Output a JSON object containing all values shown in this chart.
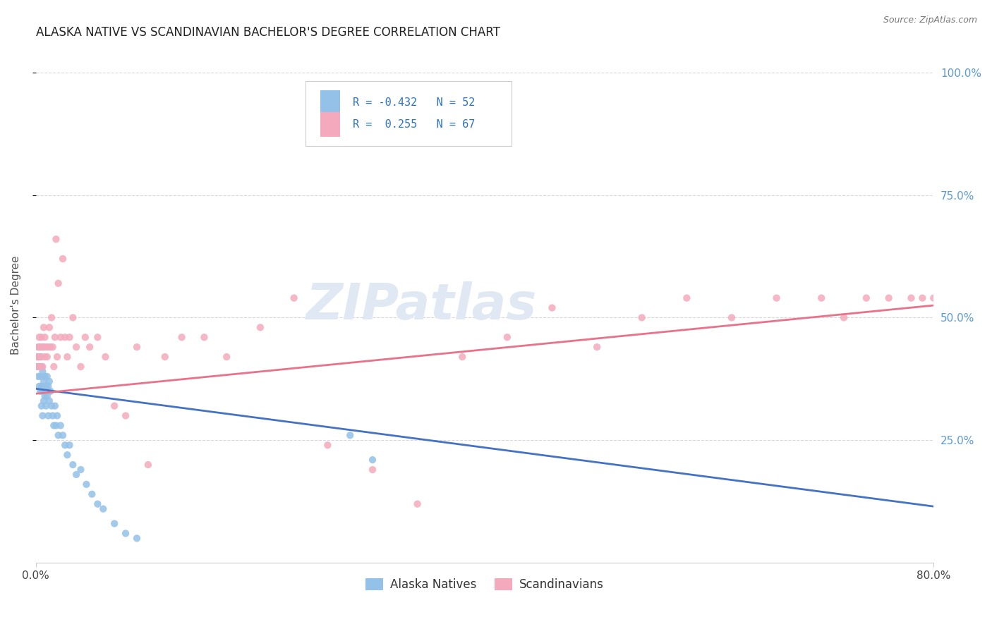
{
  "title": "ALASKA NATIVE VS SCANDINAVIAN BACHELOR'S DEGREE CORRELATION CHART",
  "source": "Source: ZipAtlas.com",
  "ylabel": "Bachelor's Degree",
  "right_yticks": [
    "100.0%",
    "75.0%",
    "50.0%",
    "25.0%"
  ],
  "right_ytick_vals": [
    1.0,
    0.75,
    0.5,
    0.25
  ],
  "legend_blue_label": "Alaska Natives",
  "legend_pink_label": "Scandinavians",
  "legend_line1": "R = -0.432   N = 52",
  "legend_line2": "R =  0.255   N = 67",
  "background_color": "#ffffff",
  "grid_color": "#d8d8d8",
  "blue_color": "#94C1E8",
  "pink_color": "#F4AABC",
  "blue_line_color": "#4472C4",
  "pink_line_color": "#E8728A",
  "watermark_color": "#E0E8F4",
  "watermark_text": "ZIPatlas",
  "alaska_x": [
    0.001,
    0.002,
    0.002,
    0.003,
    0.003,
    0.003,
    0.004,
    0.004,
    0.004,
    0.005,
    0.005,
    0.005,
    0.006,
    0.006,
    0.006,
    0.007,
    0.007,
    0.008,
    0.008,
    0.009,
    0.009,
    0.01,
    0.01,
    0.011,
    0.011,
    0.012,
    0.012,
    0.013,
    0.014,
    0.015,
    0.016,
    0.017,
    0.018,
    0.019,
    0.02,
    0.022,
    0.024,
    0.026,
    0.028,
    0.03,
    0.033,
    0.036,
    0.04,
    0.045,
    0.05,
    0.055,
    0.06,
    0.07,
    0.08,
    0.09,
    0.28,
    0.3
  ],
  "alaska_y": [
    0.4,
    0.42,
    0.38,
    0.44,
    0.4,
    0.36,
    0.42,
    0.38,
    0.35,
    0.4,
    0.36,
    0.32,
    0.39,
    0.35,
    0.3,
    0.37,
    0.33,
    0.38,
    0.34,
    0.36,
    0.32,
    0.38,
    0.34,
    0.36,
    0.3,
    0.37,
    0.33,
    0.35,
    0.32,
    0.3,
    0.28,
    0.32,
    0.28,
    0.3,
    0.26,
    0.28,
    0.26,
    0.24,
    0.22,
    0.24,
    0.2,
    0.18,
    0.19,
    0.16,
    0.14,
    0.12,
    0.11,
    0.08,
    0.06,
    0.05,
    0.26,
    0.21
  ],
  "scand_x": [
    0.001,
    0.002,
    0.002,
    0.003,
    0.003,
    0.004,
    0.004,
    0.005,
    0.005,
    0.006,
    0.006,
    0.007,
    0.007,
    0.008,
    0.008,
    0.009,
    0.01,
    0.011,
    0.012,
    0.013,
    0.014,
    0.015,
    0.016,
    0.017,
    0.018,
    0.019,
    0.02,
    0.022,
    0.024,
    0.026,
    0.028,
    0.03,
    0.033,
    0.036,
    0.04,
    0.044,
    0.048,
    0.055,
    0.062,
    0.07,
    0.08,
    0.09,
    0.1,
    0.115,
    0.13,
    0.15,
    0.17,
    0.2,
    0.23,
    0.26,
    0.3,
    0.34,
    0.38,
    0.42,
    0.46,
    0.5,
    0.54,
    0.58,
    0.62,
    0.66,
    0.7,
    0.72,
    0.74,
    0.76,
    0.78,
    0.79,
    0.8
  ],
  "scand_y": [
    0.42,
    0.44,
    0.4,
    0.46,
    0.42,
    0.44,
    0.4,
    0.46,
    0.42,
    0.44,
    0.4,
    0.48,
    0.44,
    0.46,
    0.42,
    0.44,
    0.42,
    0.44,
    0.48,
    0.44,
    0.5,
    0.44,
    0.4,
    0.46,
    0.66,
    0.42,
    0.57,
    0.46,
    0.62,
    0.46,
    0.42,
    0.46,
    0.5,
    0.44,
    0.4,
    0.46,
    0.44,
    0.46,
    0.42,
    0.32,
    0.3,
    0.44,
    0.2,
    0.42,
    0.46,
    0.46,
    0.42,
    0.48,
    0.54,
    0.24,
    0.19,
    0.12,
    0.42,
    0.46,
    0.52,
    0.44,
    0.5,
    0.54,
    0.5,
    0.54,
    0.54,
    0.5,
    0.54,
    0.54,
    0.54,
    0.54,
    0.54
  ],
  "blue_line_x0": 0.0,
  "blue_line_y0": 0.355,
  "blue_line_x1": 0.8,
  "blue_line_y1": 0.115,
  "pink_line_x0": 0.0,
  "pink_line_y0": 0.345,
  "pink_line_x1": 0.8,
  "pink_line_y1": 0.525,
  "xlim": [
    0.0,
    0.8
  ],
  "ylim": [
    0.0,
    1.05
  ],
  "xticks": [
    0.0,
    0.8
  ],
  "xticklabels": [
    "0.0%",
    "80.0%"
  ],
  "yticks": [
    0.25,
    0.5,
    0.75,
    1.0
  ]
}
